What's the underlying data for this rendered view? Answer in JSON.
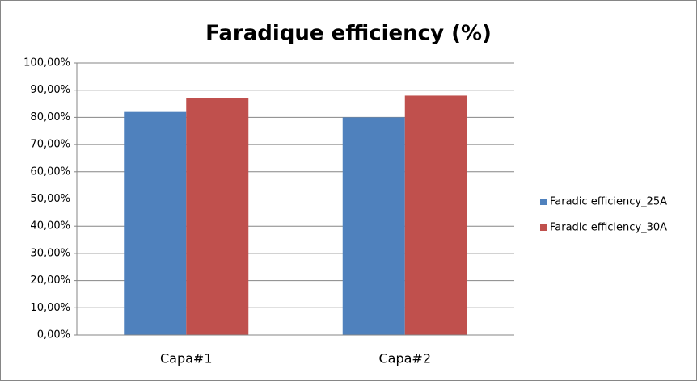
{
  "chart_data": {
    "type": "bar",
    "title": "Faradique efficiency (%)",
    "categories": [
      "Capa#1",
      "Capa#2"
    ],
    "series": [
      {
        "name": "Faradic efficiency_25A",
        "color": "#4f81bd",
        "values": [
          82,
          80
        ]
      },
      {
        "name": "Faradic efficiency_30A",
        "color": "#c0504d",
        "values": [
          87,
          88
        ]
      }
    ],
    "ylim": [
      0,
      100
    ],
    "yticks": [
      {
        "value": 0,
        "label": "0,00%"
      },
      {
        "value": 10,
        "label": "10,00%"
      },
      {
        "value": 20,
        "label": "20,00%"
      },
      {
        "value": 30,
        "label": "30,00%"
      },
      {
        "value": 40,
        "label": "40,00%"
      },
      {
        "value": 50,
        "label": "50,00%"
      },
      {
        "value": 60,
        "label": "60,00%"
      },
      {
        "value": 70,
        "label": "70,00%"
      },
      {
        "value": 80,
        "label": "80,00%"
      },
      {
        "value": 90,
        "label": "90,00%"
      },
      {
        "value": 100,
        "label": "100,00%"
      }
    ],
    "grid": true,
    "legend": "right"
  }
}
